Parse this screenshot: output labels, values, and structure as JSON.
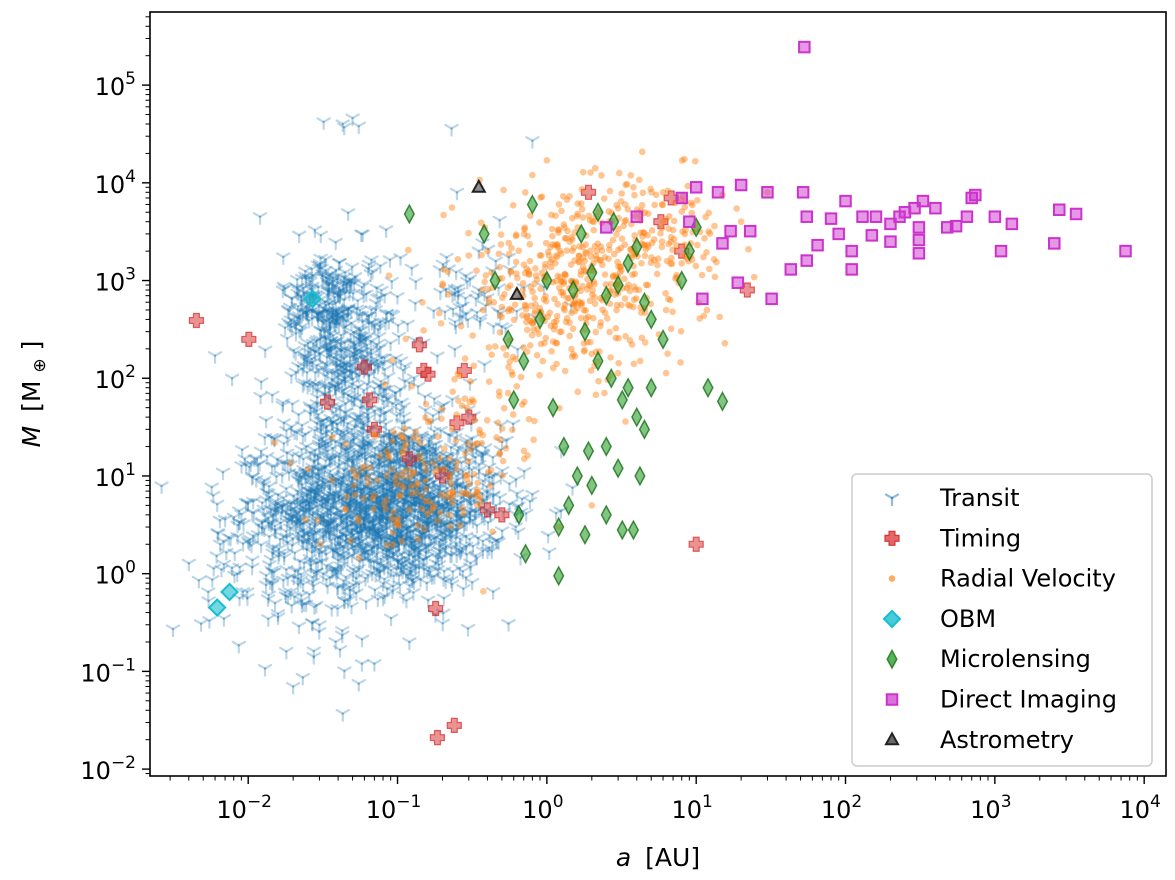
{
  "chart_data": {
    "type": "scatter",
    "title": "",
    "xlabel_var": "a",
    "xlabel_unit": "[AU]",
    "ylabel_var": "M",
    "ylabel_unit_open": "[M",
    "ylabel_unit_sub": "⊕",
    "ylabel_unit_close": "]",
    "x_scale": "log",
    "y_scale": "log",
    "xlim": [
      0.0022,
      14000
    ],
    "ylim": [
      0.0085,
      560000
    ],
    "x_ticks": [
      {
        "base": "10",
        "exp": "−2",
        "value": 0.01
      },
      {
        "base": "10",
        "exp": "−1",
        "value": 0.1
      },
      {
        "base": "10",
        "exp": "0",
        "value": 1
      },
      {
        "base": "10",
        "exp": "1",
        "value": 10
      },
      {
        "base": "10",
        "exp": "2",
        "value": 100
      },
      {
        "base": "10",
        "exp": "3",
        "value": 1000
      },
      {
        "base": "10",
        "exp": "4",
        "value": 10000
      }
    ],
    "y_ticks": [
      {
        "base": "10",
        "exp": "−2",
        "value": 0.01
      },
      {
        "base": "10",
        "exp": "−1",
        "value": 0.1
      },
      {
        "base": "10",
        "exp": "0",
        "value": 1
      },
      {
        "base": "10",
        "exp": "1",
        "value": 10
      },
      {
        "base": "10",
        "exp": "2",
        "value": 100
      },
      {
        "base": "10",
        "exp": "3",
        "value": 1000
      },
      {
        "base": "10",
        "exp": "4",
        "value": 10000
      },
      {
        "base": "10",
        "exp": "5",
        "value": 100000
      }
    ],
    "grid": false,
    "legend_position": "lower-right",
    "series": [
      {
        "name": "Transit",
        "marker": "tri_down",
        "color": "#1f77b4",
        "alpha": 0.3,
        "clusters": [
          {
            "x": 0.09,
            "y": 5,
            "sx": 0.38,
            "sy": 0.42,
            "n": 1500
          },
          {
            "x": 0.045,
            "y": 250,
            "sx": 0.18,
            "sy": 0.45,
            "n": 320
          },
          {
            "x": 0.03,
            "y": 600,
            "sx": 0.12,
            "sy": 0.25,
            "n": 120
          },
          {
            "x": 0.045,
            "y": 40,
            "sx": 0.3,
            "sy": 0.6,
            "n": 200
          },
          {
            "x": 0.02,
            "y": 2,
            "sx": 0.3,
            "sy": 0.5,
            "n": 200
          },
          {
            "x": 0.3,
            "y": 600,
            "sx": 0.3,
            "sy": 0.3,
            "n": 60
          }
        ],
        "points": [
          {
            "x": 0.032,
            "y": 42000
          },
          {
            "x": 0.043,
            "y": 40000
          },
          {
            "x": 0.044,
            "y": 37000
          },
          {
            "x": 0.05,
            "y": 46000
          },
          {
            "x": 0.055,
            "y": 38000
          },
          {
            "x": 0.23,
            "y": 36000
          },
          {
            "x": 0.8,
            "y": 27000
          },
          {
            "x": 0.25,
            "y": 8000
          },
          {
            "x": 0.012,
            "y": 4500
          },
          {
            "x": 0.006,
            "y": 170
          },
          {
            "x": 0.0078,
            "y": 100
          },
          {
            "x": 0.0065,
            "y": 2
          },
          {
            "x": 0.0055,
            "y": 0.33
          },
          {
            "x": 0.018,
            "y": 0.16
          },
          {
            "x": 0.043,
            "y": 0.037
          },
          {
            "x": 0.055,
            "y": 0.075
          },
          {
            "x": 0.07,
            "y": 0.12
          },
          {
            "x": 0.03,
            "y": 0.3
          },
          {
            "x": 0.02,
            "y": 0.07
          },
          {
            "x": 0.12,
            "y": 0.2
          },
          {
            "x": 0.35,
            "y": 2000
          }
        ]
      },
      {
        "name": "Timing",
        "marker": "plus_filled",
        "color": "#d62728",
        "alpha": 0.5,
        "points": [
          {
            "x": 0.0045,
            "y": 390
          },
          {
            "x": 0.0101,
            "y": 250
          },
          {
            "x": 0.034,
            "y": 57
          },
          {
            "x": 0.065,
            "y": 60
          },
          {
            "x": 0.06,
            "y": 130
          },
          {
            "x": 0.16,
            "y": 110
          },
          {
            "x": 0.15,
            "y": 120
          },
          {
            "x": 0.2,
            "y": 10
          },
          {
            "x": 0.28,
            "y": 120
          },
          {
            "x": 0.4,
            "y": 4.5
          },
          {
            "x": 0.5,
            "y": 4
          },
          {
            "x": 0.18,
            "y": 0.44
          },
          {
            "x": 0.185,
            "y": 0.021
          },
          {
            "x": 0.24,
            "y": 0.028
          },
          {
            "x": 10,
            "y": 2
          },
          {
            "x": 1.9,
            "y": 8000
          },
          {
            "x": 6.8,
            "y": 7000
          },
          {
            "x": 5.8,
            "y": 4000
          },
          {
            "x": 22,
            "y": 800
          },
          {
            "x": 8,
            "y": 2000
          },
          {
            "x": 0.07,
            "y": 30
          },
          {
            "x": 0.12,
            "y": 15
          },
          {
            "x": 0.3,
            "y": 40
          },
          {
            "x": 0.25,
            "y": 35
          },
          {
            "x": 0.14,
            "y": 220
          }
        ]
      },
      {
        "name": "Radial Velocity",
        "marker": "circle",
        "color": "#ff7f0e",
        "alpha": 0.45,
        "clusters": [
          {
            "x": 1.5,
            "y": 900,
            "sx": 0.4,
            "sy": 0.45,
            "n": 480
          },
          {
            "x": 0.12,
            "y": 7,
            "sx": 0.3,
            "sy": 0.3,
            "n": 140
          },
          {
            "x": 0.35,
            "y": 30,
            "sx": 0.25,
            "sy": 0.4,
            "n": 80
          },
          {
            "x": 5,
            "y": 3000,
            "sx": 0.25,
            "sy": 0.3,
            "n": 120
          }
        ],
        "points": [
          {
            "x": 1.0,
            "y": 17000
          },
          {
            "x": 6,
            "y": 8000
          },
          {
            "x": 3.8,
            "y": 9000
          },
          {
            "x": 0.8,
            "y": 12000
          },
          {
            "x": 15,
            "y": 7500
          },
          {
            "x": 0.4,
            "y": 2000
          },
          {
            "x": 0.3,
            "y": 1800
          },
          {
            "x": 1.2,
            "y": 3
          },
          {
            "x": 2,
            "y": 5
          },
          {
            "x": 8,
            "y": 1500
          },
          {
            "x": 20,
            "y": 4000
          },
          {
            "x": 30,
            "y": 8000
          }
        ]
      },
      {
        "name": "OBM",
        "marker": "diamond",
        "color": "#17becf",
        "alpha": 0.6,
        "points": [
          {
            "x": 0.0062,
            "y": 0.45
          },
          {
            "x": 0.0075,
            "y": 0.65
          },
          {
            "x": 0.027,
            "y": 650
          }
        ]
      },
      {
        "name": "Microlensing",
        "marker": "thin_diamond",
        "color": "#2ca02c",
        "alpha": 0.6,
        "points": [
          {
            "x": 0.12,
            "y": 4800
          },
          {
            "x": 0.38,
            "y": 3000
          },
          {
            "x": 0.8,
            "y": 6000
          },
          {
            "x": 1.0,
            "y": 1000
          },
          {
            "x": 1.5,
            "y": 800
          },
          {
            "x": 2,
            "y": 1200
          },
          {
            "x": 2.5,
            "y": 700
          },
          {
            "x": 3,
            "y": 900
          },
          {
            "x": 3.5,
            "y": 1500
          },
          {
            "x": 4,
            "y": 2200
          },
          {
            "x": 4.5,
            "y": 600
          },
          {
            "x": 5,
            "y": 400
          },
          {
            "x": 6,
            "y": 250
          },
          {
            "x": 1.8,
            "y": 300
          },
          {
            "x": 2.2,
            "y": 150
          },
          {
            "x": 2.7,
            "y": 100
          },
          {
            "x": 3.2,
            "y": 60
          },
          {
            "x": 1.1,
            "y": 50
          },
          {
            "x": 1.3,
            "y": 20
          },
          {
            "x": 1.6,
            "y": 10
          },
          {
            "x": 2.5,
            "y": 20
          },
          {
            "x": 3,
            "y": 12
          },
          {
            "x": 2,
            "y": 8
          },
          {
            "x": 1.4,
            "y": 5
          },
          {
            "x": 0.65,
            "y": 4
          },
          {
            "x": 0.72,
            "y": 1.6
          },
          {
            "x": 1.2,
            "y": 0.95
          },
          {
            "x": 1.2,
            "y": 3
          },
          {
            "x": 1.8,
            "y": 2.5
          },
          {
            "x": 2.5,
            "y": 4
          },
          {
            "x": 3.2,
            "y": 2.8
          },
          {
            "x": 3.8,
            "y": 2.8
          },
          {
            "x": 4.5,
            "y": 30
          },
          {
            "x": 5,
            "y": 80
          },
          {
            "x": 8,
            "y": 1000
          },
          {
            "x": 9,
            "y": 2000
          },
          {
            "x": 10,
            "y": 3500
          },
          {
            "x": 12,
            "y": 80
          },
          {
            "x": 15,
            "y": 58
          },
          {
            "x": 0.55,
            "y": 250
          },
          {
            "x": 0.6,
            "y": 60
          },
          {
            "x": 0.7,
            "y": 150
          },
          {
            "x": 0.9,
            "y": 400
          },
          {
            "x": 3.5,
            "y": 80
          },
          {
            "x": 4,
            "y": 40
          },
          {
            "x": 2.2,
            "y": 5000
          },
          {
            "x": 2.8,
            "y": 4000
          },
          {
            "x": 1.7,
            "y": 3000
          },
          {
            "x": 0.45,
            "y": 1000
          },
          {
            "x": 1.9,
            "y": 18
          },
          {
            "x": 4.2,
            "y": 10
          }
        ]
      },
      {
        "name": "Direct Imaging",
        "marker": "square",
        "color": "#cc33cc",
        "alpha": 0.5,
        "points": [
          {
            "x": 53,
            "y": 245000
          },
          {
            "x": 10,
            "y": 9000
          },
          {
            "x": 8,
            "y": 7000
          },
          {
            "x": 14,
            "y": 8000
          },
          {
            "x": 20,
            "y": 9500
          },
          {
            "x": 30,
            "y": 8000
          },
          {
            "x": 52,
            "y": 8000
          },
          {
            "x": 100,
            "y": 6500
          },
          {
            "x": 700,
            "y": 7000
          },
          {
            "x": 740,
            "y": 7500
          },
          {
            "x": 330,
            "y": 6500
          },
          {
            "x": 290,
            "y": 5500
          },
          {
            "x": 230,
            "y": 4500
          },
          {
            "x": 250,
            "y": 5000
          },
          {
            "x": 160,
            "y": 4500
          },
          {
            "x": 200,
            "y": 3800
          },
          {
            "x": 400,
            "y": 5500
          },
          {
            "x": 480,
            "y": 3500
          },
          {
            "x": 550,
            "y": 3600
          },
          {
            "x": 650,
            "y": 4500
          },
          {
            "x": 1000,
            "y": 4500
          },
          {
            "x": 1300,
            "y": 3800
          },
          {
            "x": 2700,
            "y": 5300
          },
          {
            "x": 3500,
            "y": 4800
          },
          {
            "x": 2500,
            "y": 2400
          },
          {
            "x": 7500,
            "y": 2000
          },
          {
            "x": 1100,
            "y": 2000
          },
          {
            "x": 310,
            "y": 1900
          },
          {
            "x": 310,
            "y": 3500
          },
          {
            "x": 310,
            "y": 2600
          },
          {
            "x": 200,
            "y": 2500
          },
          {
            "x": 150,
            "y": 2900
          },
          {
            "x": 110,
            "y": 2000
          },
          {
            "x": 110,
            "y": 1300
          },
          {
            "x": 90,
            "y": 3000
          },
          {
            "x": 80,
            "y": 4300
          },
          {
            "x": 55,
            "y": 4500
          },
          {
            "x": 55,
            "y": 1600
          },
          {
            "x": 43,
            "y": 1300
          },
          {
            "x": 65,
            "y": 2300
          },
          {
            "x": 32,
            "y": 650
          },
          {
            "x": 19,
            "y": 950
          },
          {
            "x": 15,
            "y": 2400
          },
          {
            "x": 17,
            "y": 3200
          },
          {
            "x": 11,
            "y": 650
          },
          {
            "x": 9,
            "y": 4000
          },
          {
            "x": 4,
            "y": 4500
          },
          {
            "x": 2.5,
            "y": 3500
          },
          {
            "x": 23,
            "y": 3200
          },
          {
            "x": 130,
            "y": 4500
          }
        ]
      },
      {
        "name": "Astrometry",
        "marker": "triangle",
        "color": "#444444",
        "alpha": 0.6,
        "points": [
          {
            "x": 0.35,
            "y": 9000
          },
          {
            "x": 0.63,
            "y": 720
          }
        ]
      }
    ]
  }
}
